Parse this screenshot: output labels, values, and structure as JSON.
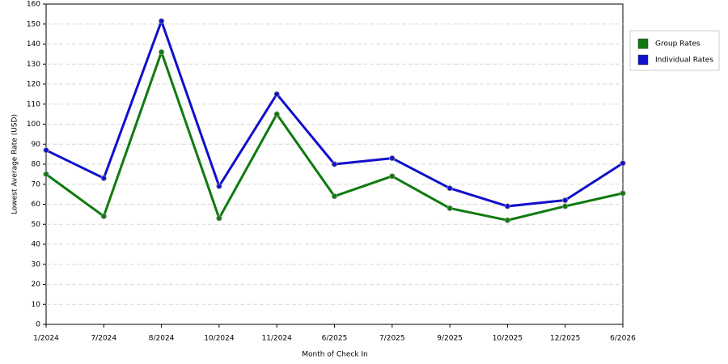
{
  "chart_data": {
    "type": "line",
    "x_label": "Month of Check In",
    "y_label": "Lowest Average Rate (USD)",
    "categories": [
      "1/2024",
      "7/2024",
      "8/2024",
      "10/2024",
      "11/2024",
      "6/2025",
      "7/2025",
      "9/2025",
      "10/2025",
      "12/2025",
      "6/2026"
    ],
    "series": [
      {
        "name": "Group Rates",
        "color": "#0f7a0f",
        "values": [
          75,
          54,
          136,
          53,
          105,
          64,
          74,
          58,
          52,
          59,
          65.5
        ]
      },
      {
        "name": "Individual Rates",
        "color": "#1010cc",
        "values": [
          87,
          73,
          151.5,
          69,
          115,
          80,
          83,
          68,
          59,
          62,
          80.5
        ]
      }
    ],
    "ylim": [
      0,
      160
    ],
    "yticks": [
      0,
      10,
      20,
      30,
      40,
      50,
      60,
      70,
      80,
      90,
      100,
      110,
      120,
      130,
      140,
      150,
      160
    ],
    "grid": true,
    "legend": "right"
  }
}
